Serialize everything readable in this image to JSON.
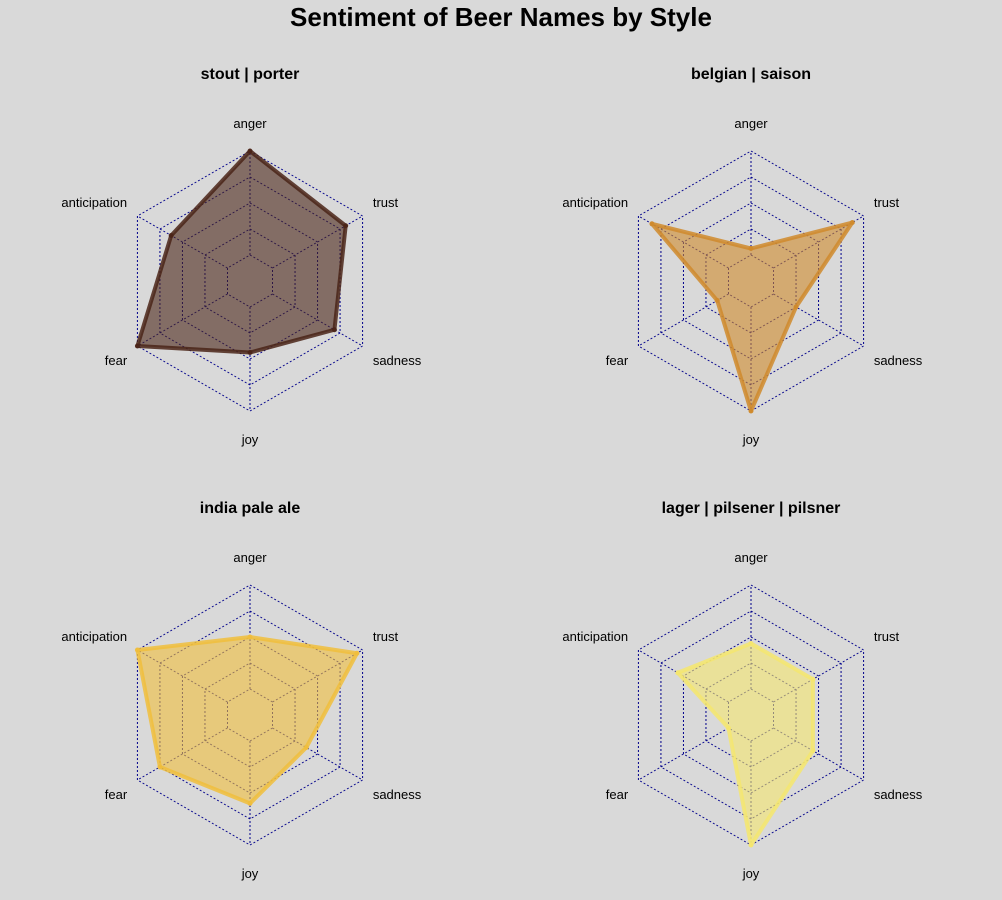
{
  "title": "Sentiment of Beer Names by Style",
  "chart_data": [
    {
      "type": "radar",
      "title": "stout | porter",
      "axes": [
        "anger",
        "trust",
        "sadness",
        "joy",
        "fear",
        "anticipation"
      ],
      "values": [
        1.0,
        0.85,
        0.75,
        0.55,
        1.0,
        0.7
      ],
      "rlim": [
        0,
        1
      ],
      "rings": 4,
      "color": "#4a2417"
    },
    {
      "type": "radar",
      "title": "belgian | saison",
      "axes": [
        "anger",
        "trust",
        "sadness",
        "joy",
        "fear",
        "anticipation"
      ],
      "values": [
        0.25,
        0.9,
        0.4,
        1.0,
        0.3,
        0.88
      ],
      "rlim": [
        0,
        1
      ],
      "rings": 4,
      "color": "#cf8a2b"
    },
    {
      "type": "radar",
      "title": "india pale ale",
      "axes": [
        "anger",
        "trust",
        "sadness",
        "joy",
        "fear",
        "anticipation"
      ],
      "values": [
        0.6,
        0.95,
        0.5,
        0.68,
        0.8,
        1.0
      ],
      "rlim": [
        0,
        1
      ],
      "rings": 4,
      "color": "#f0be3c"
    },
    {
      "type": "radar",
      "title": "lager | pilsener | pilsner",
      "axes": [
        "anger",
        "trust",
        "sadness",
        "joy",
        "fear",
        "anticipation"
      ],
      "values": [
        0.55,
        0.55,
        0.55,
        1.0,
        0.2,
        0.65
      ],
      "rlim": [
        0,
        1
      ],
      "rings": 4,
      "color": "#f5e66e"
    }
  ]
}
